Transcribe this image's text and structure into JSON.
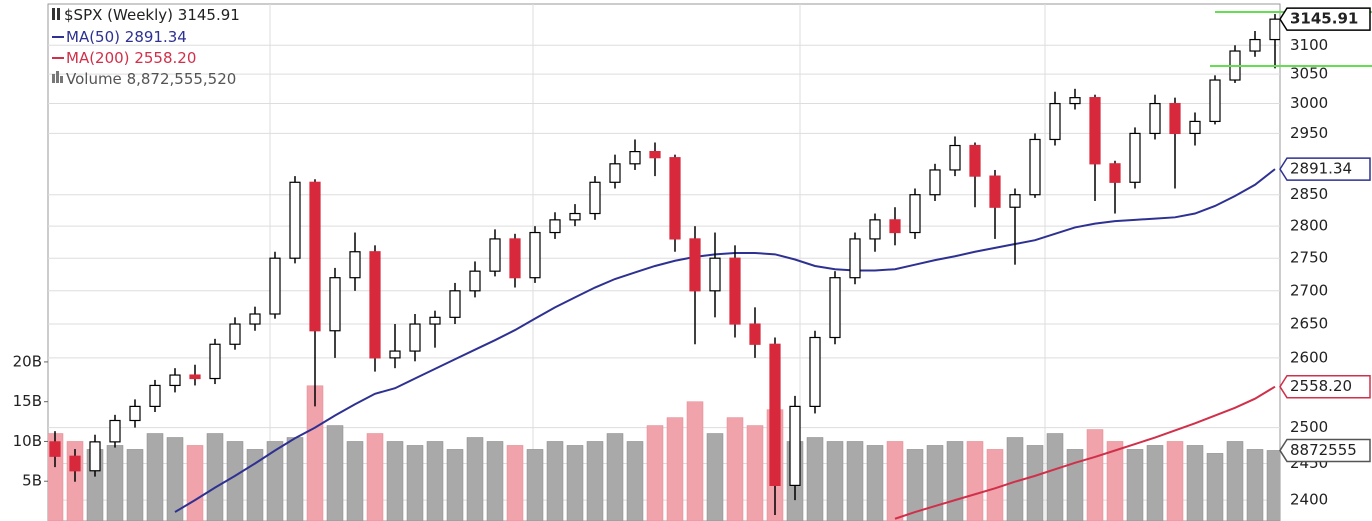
{
  "chart_data": {
    "type": "candlestick",
    "title": "$SPX (Weekly)",
    "title_value": "3145.91",
    "log_scale": true,
    "ylim": [
      2372,
      3180
    ],
    "yticks": [
      2400,
      2450,
      2500,
      2600,
      2650,
      2700,
      2750,
      2800,
      2850,
      2950,
      3000,
      3050,
      3100
    ],
    "grid": true,
    "up_color": "#ffffff",
    "down_color": "#d8283c",
    "wick_color": "#000000",
    "open": [
      2480,
      2460,
      2440,
      2480,
      2510,
      2530,
      2560,
      2575,
      2570,
      2620,
      2650,
      2665,
      2750,
      2870,
      2640,
      2720,
      2760,
      2600,
      2610,
      2650,
      2660,
      2700,
      2730,
      2780,
      2720,
      2790,
      2810,
      2820,
      2870,
      2900,
      2920,
      2910,
      2780,
      2700,
      2750,
      2650,
      2620,
      2420,
      2530,
      2630,
      2720,
      2780,
      2810,
      2790,
      2850,
      2890,
      2930,
      2880,
      2830,
      2850,
      2940,
      3000,
      3010,
      2900,
      2870,
      2950,
      3000,
      2950,
      2970,
      3040,
      3090,
      3110
    ],
    "high": [
      2495,
      2470,
      2490,
      2518,
      2540,
      2568,
      2585,
      2590,
      2628,
      2660,
      2676,
      2760,
      2880,
      2875,
      2735,
      2790,
      2770,
      2650,
      2665,
      2670,
      2712,
      2745,
      2795,
      2788,
      2800,
      2822,
      2835,
      2880,
      2915,
      2940,
      2935,
      2915,
      2800,
      2790,
      2770,
      2675,
      2630,
      2545,
      2640,
      2730,
      2790,
      2820,
      2830,
      2860,
      2900,
      2945,
      2935,
      2890,
      2860,
      2950,
      3020,
      3025,
      3015,
      2905,
      2960,
      3015,
      3010,
      2985,
      3048,
      3100,
      3125,
      3155
    ],
    "low": [
      2445,
      2425,
      2432,
      2472,
      2500,
      2522,
      2550,
      2560,
      2562,
      2612,
      2640,
      2658,
      2742,
      2530,
      2600,
      2700,
      2580,
      2585,
      2595,
      2615,
      2650,
      2690,
      2722,
      2705,
      2712,
      2780,
      2800,
      2810,
      2860,
      2890,
      2880,
      2760,
      2620,
      2660,
      2630,
      2600,
      2380,
      2400,
      2520,
      2620,
      2710,
      2760,
      2770,
      2780,
      2840,
      2880,
      2830,
      2780,
      2740,
      2845,
      2930,
      2990,
      2840,
      2820,
      2860,
      2940,
      2860,
      2930,
      2965,
      3035,
      3080,
      3060
    ],
    "close": [
      2460,
      2440,
      2480,
      2510,
      2530,
      2560,
      2575,
      2570,
      2620,
      2650,
      2665,
      2750,
      2870,
      2640,
      2720,
      2760,
      2600,
      2610,
      2650,
      2660,
      2700,
      2730,
      2780,
      2720,
      2790,
      2810,
      2820,
      2870,
      2900,
      2920,
      2910,
      2780,
      2700,
      2750,
      2650,
      2620,
      2420,
      2530,
      2630,
      2720,
      2780,
      2810,
      2790,
      2850,
      2890,
      2930,
      2880,
      2830,
      2850,
      2940,
      3000,
      3010,
      2900,
      2870,
      2950,
      3000,
      2950,
      2970,
      3040,
      3090,
      3110,
      3145.91
    ],
    "series": [
      {
        "name": "MA(50)",
        "last_label": "2891.34",
        "color": "#2e3192",
        "values": [
          null,
          null,
          null,
          null,
          null,
          null,
          2384,
          2400,
          2417,
          2433,
          2450,
          2468,
          2485,
          2500,
          2517,
          2533,
          2548,
          2556,
          2570,
          2584,
          2598,
          2612,
          2626,
          2641,
          2658,
          2675,
          2690,
          2705,
          2718,
          2728,
          2738,
          2746,
          2752,
          2756,
          2758,
          2758,
          2756,
          2748,
          2738,
          2733,
          2731,
          2731,
          2733,
          2740,
          2747,
          2753,
          2760,
          2766,
          2772,
          2778,
          2788,
          2798,
          2804,
          2808,
          2810,
          2812,
          2814,
          2820,
          2832,
          2848,
          2866,
          2891.34
        ]
      },
      {
        "name": "MA(200)",
        "last_label": "2558.20",
        "color": "#d0304a",
        "values": [
          null,
          null,
          null,
          null,
          null,
          null,
          null,
          null,
          null,
          null,
          null,
          null,
          null,
          null,
          null,
          null,
          null,
          null,
          null,
          null,
          null,
          null,
          null,
          null,
          null,
          null,
          null,
          null,
          null,
          null,
          null,
          null,
          null,
          null,
          null,
          null,
          null,
          null,
          null,
          null,
          null,
          null,
          2375,
          2384,
          2392,
          2400,
          2408,
          2416,
          2425,
          2433,
          2442,
          2451,
          2459,
          2468,
          2477,
          2486,
          2496,
          2506,
          2517,
          2528,
          2541,
          2558.2
        ]
      }
    ],
    "volume": {
      "name": "Volume",
      "label": "8,872,555,520",
      "tag": "8872555",
      "up_color": "#a9a9a9",
      "down_color": "#f0a3aa",
      "ylim": [
        0,
        65.5
      ],
      "yticks": [
        {
          "value": 5,
          "label": "5B"
        },
        {
          "value": 10,
          "label": "10B"
        },
        {
          "value": 15,
          "label": "15B"
        },
        {
          "value": 20,
          "label": "20B"
        }
      ],
      "values": [
        11,
        10,
        9,
        9.5,
        9,
        11,
        10.5,
        9.5,
        11,
        10,
        9,
        10,
        10.5,
        17,
        12,
        10,
        11,
        10,
        9.5,
        10,
        9,
        10.5,
        10,
        9.5,
        9,
        10,
        9.5,
        10,
        11,
        10,
        12,
        13,
        15,
        11,
        13,
        12,
        14,
        10,
        10.5,
        10,
        10,
        9.5,
        10,
        9,
        9.5,
        10,
        10,
        9,
        10.5,
        9.5,
        11,
        9,
        11.5,
        10,
        9,
        9.5,
        10,
        9.5,
        8.5,
        10,
        9,
        8.87
      ]
    }
  }
}
